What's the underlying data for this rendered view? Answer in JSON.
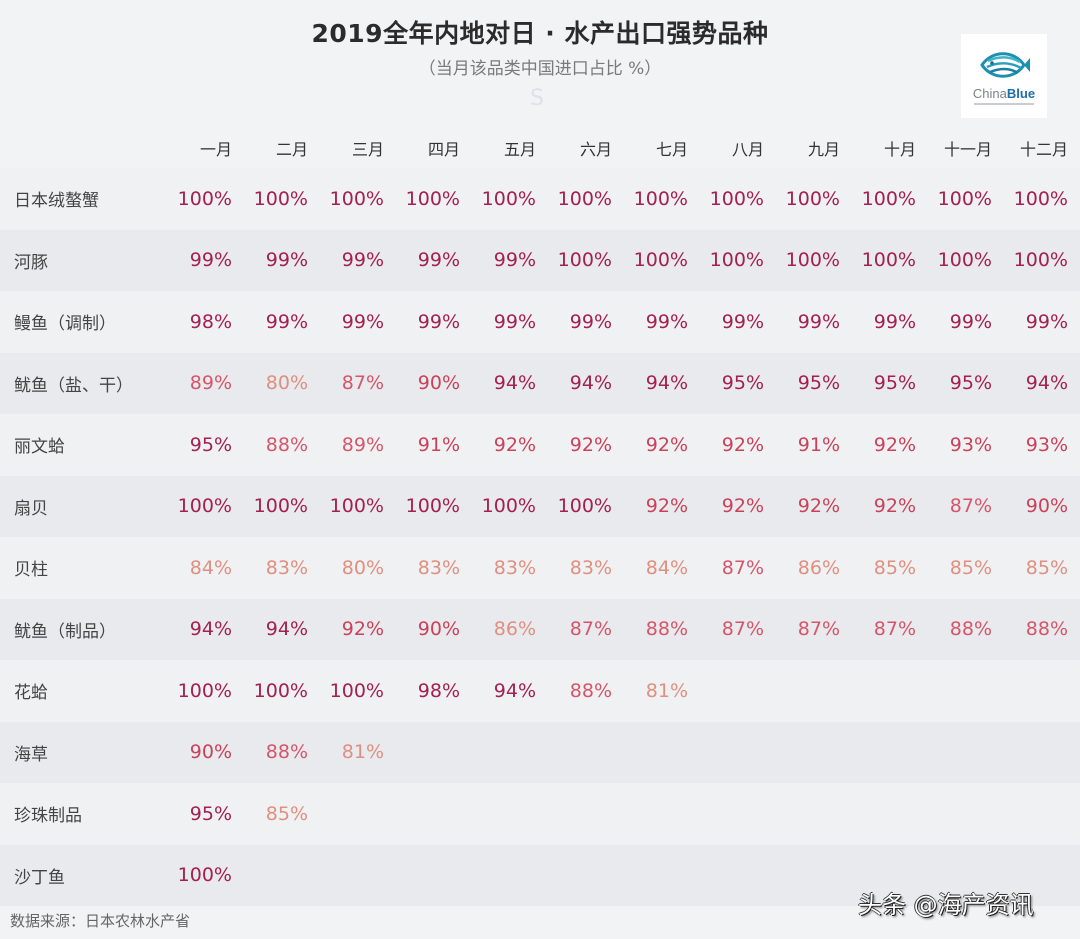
{
  "header": {
    "title": "2019全年内地对日 · 水产出口强势品种",
    "subtitle": "（当月该品类中国进口占比 %）",
    "watermark_letter": "S",
    "logo": {
      "brand_a": "China",
      "brand_b": "Blue",
      "icon": "fish-icon"
    }
  },
  "months": [
    "一月",
    "二月",
    "三月",
    "四月",
    "五月",
    "六月",
    "七月",
    "八月",
    "九月",
    "十月",
    "十一月",
    "十二月"
  ],
  "rows": [
    {
      "name": "日本绒螯蟹",
      "values": [
        "100%",
        "100%",
        "100%",
        "100%",
        "100%",
        "100%",
        "100%",
        "100%",
        "100%",
        "100%",
        "100%",
        "100%"
      ]
    },
    {
      "name": "河豚",
      "values": [
        "99%",
        "99%",
        "99%",
        "99%",
        "99%",
        "100%",
        "100%",
        "100%",
        "100%",
        "100%",
        "100%",
        "100%"
      ]
    },
    {
      "name": "鳗鱼（调制）",
      "values": [
        "98%",
        "99%",
        "99%",
        "99%",
        "99%",
        "99%",
        "99%",
        "99%",
        "99%",
        "99%",
        "99%",
        "99%"
      ]
    },
    {
      "name": "鱿鱼（盐、干）",
      "values": [
        "89%",
        "80%",
        "87%",
        "90%",
        "94%",
        "94%",
        "94%",
        "95%",
        "95%",
        "95%",
        "95%",
        "94%"
      ]
    },
    {
      "name": "丽文蛤",
      "values": [
        "95%",
        "88%",
        "89%",
        "91%",
        "92%",
        "92%",
        "92%",
        "92%",
        "91%",
        "92%",
        "93%",
        "93%"
      ]
    },
    {
      "name": "扇贝",
      "values": [
        "100%",
        "100%",
        "100%",
        "100%",
        "100%",
        "100%",
        "92%",
        "92%",
        "92%",
        "92%",
        "87%",
        "90%"
      ]
    },
    {
      "name": "贝柱",
      "values": [
        "84%",
        "83%",
        "80%",
        "83%",
        "83%",
        "83%",
        "84%",
        "87%",
        "86%",
        "85%",
        "85%",
        "85%"
      ]
    },
    {
      "name": "鱿鱼（制品）",
      "values": [
        "94%",
        "94%",
        "92%",
        "90%",
        "86%",
        "87%",
        "88%",
        "87%",
        "87%",
        "87%",
        "88%",
        "88%"
      ]
    },
    {
      "name": "花蛤",
      "values": [
        "100%",
        "100%",
        "100%",
        "98%",
        "94%",
        "88%",
        "81%",
        "",
        "",
        "",
        "",
        ""
      ]
    },
    {
      "name": "海草",
      "values": [
        "90%",
        "88%",
        "81%",
        "",
        "",
        "",
        "",
        "",
        "",
        "",
        "",
        ""
      ]
    },
    {
      "name": "珍珠制品",
      "values": [
        "95%",
        "85%",
        "",
        "",
        "",
        "",
        "",
        "",
        "",
        "",
        "",
        ""
      ]
    },
    {
      "name": "沙丁鱼",
      "values": [
        "100%",
        "",
        "",
        "",
        "",
        "",
        "",
        "",
        "",
        "",
        "",
        ""
      ]
    }
  ],
  "footer": {
    "source": "数据来源：日本农林水产省",
    "watermark": "头条 @海产资讯"
  },
  "colors": {
    "dark": "#a3204f",
    "mid": "#c9425a",
    "light": "#e08f80",
    "background": "#f2f3f5",
    "row_alt": "#e8eaed"
  },
  "chart_data": {
    "type": "table",
    "title": "2019全年内地对日 · 水产出口强势品种",
    "subtitle": "（当月该品类中国进口占比 %）",
    "columns": [
      "一月",
      "二月",
      "三月",
      "四月",
      "五月",
      "六月",
      "七月",
      "八月",
      "九月",
      "十月",
      "十一月",
      "十二月"
    ],
    "series": [
      {
        "name": "日本绒螯蟹",
        "values": [
          100,
          100,
          100,
          100,
          100,
          100,
          100,
          100,
          100,
          100,
          100,
          100
        ]
      },
      {
        "name": "河豚",
        "values": [
          99,
          99,
          99,
          99,
          99,
          100,
          100,
          100,
          100,
          100,
          100,
          100
        ]
      },
      {
        "name": "鳗鱼（调制）",
        "values": [
          98,
          99,
          99,
          99,
          99,
          99,
          99,
          99,
          99,
          99,
          99,
          99
        ]
      },
      {
        "name": "鱿鱼（盐、干）",
        "values": [
          89,
          80,
          87,
          90,
          94,
          94,
          94,
          95,
          95,
          95,
          95,
          94
        ]
      },
      {
        "name": "丽文蛤",
        "values": [
          95,
          88,
          89,
          91,
          92,
          92,
          92,
          92,
          91,
          92,
          93,
          93
        ]
      },
      {
        "name": "扇贝",
        "values": [
          100,
          100,
          100,
          100,
          100,
          100,
          92,
          92,
          92,
          92,
          87,
          90
        ]
      },
      {
        "name": "贝柱",
        "values": [
          84,
          83,
          80,
          83,
          83,
          83,
          84,
          87,
          86,
          85,
          85,
          85
        ]
      },
      {
        "name": "鱿鱼（制品）",
        "values": [
          94,
          94,
          92,
          90,
          86,
          87,
          88,
          87,
          87,
          87,
          88,
          88
        ]
      },
      {
        "name": "花蛤",
        "values": [
          100,
          100,
          100,
          98,
          94,
          88,
          81,
          null,
          null,
          null,
          null,
          null
        ]
      },
      {
        "name": "海草",
        "values": [
          90,
          88,
          81,
          null,
          null,
          null,
          null,
          null,
          null,
          null,
          null,
          null
        ]
      },
      {
        "name": "珍珠制品",
        "values": [
          95,
          85,
          null,
          null,
          null,
          null,
          null,
          null,
          null,
          null,
          null,
          null
        ]
      },
      {
        "name": "沙丁鱼",
        "values": [
          100,
          null,
          null,
          null,
          null,
          null,
          null,
          null,
          null,
          null,
          null,
          null
        ]
      }
    ],
    "unit": "%",
    "source": "数据来源：日本农林水产省"
  }
}
